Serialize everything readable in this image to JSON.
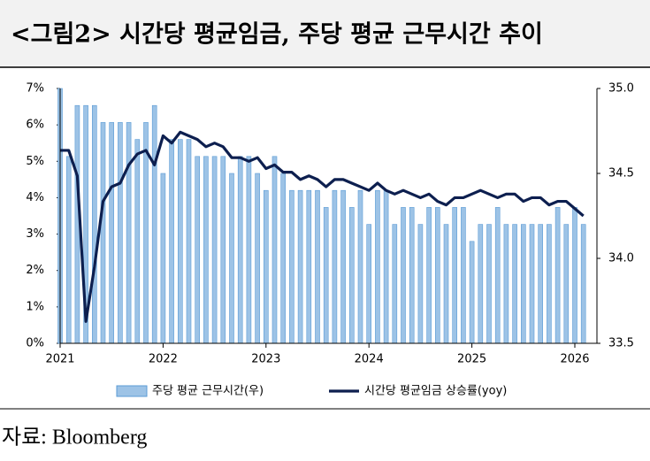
{
  "chart_data": {
    "type": "combo",
    "title": "<그림2> 시간당 평균임금, 주당 평균 근무시간 추이",
    "source": "자료: Bloomberg",
    "categories": [
      "2021",
      null,
      null,
      null,
      null,
      null,
      null,
      null,
      null,
      null,
      null,
      null,
      "2022",
      null,
      null,
      null,
      null,
      null,
      null,
      null,
      null,
      null,
      null,
      null,
      "2023",
      null,
      null,
      null,
      null,
      null,
      null,
      null,
      null,
      null,
      null,
      null,
      "2024",
      null,
      null,
      null,
      null,
      null,
      null,
      null,
      null,
      null,
      null,
      null,
      "2025",
      null,
      null,
      null,
      null,
      null,
      null,
      null,
      null,
      null,
      null,
      null,
      "2026",
      null
    ],
    "ylim": [
      0,
      7
    ],
    "yticks": [
      {
        "value": 0,
        "label": "0%"
      },
      {
        "value": 1,
        "label": "1%"
      },
      {
        "value": 2,
        "label": "2%"
      },
      {
        "value": 3,
        "label": "3%"
      },
      {
        "value": 4,
        "label": "4%"
      },
      {
        "value": 5,
        "label": "5%"
      },
      {
        "value": 6,
        "label": "6%"
      },
      {
        "value": 7,
        "label": "7%"
      }
    ],
    "y2lim": [
      33.5,
      35.0
    ],
    "y2ticks": [
      33.5,
      {
        "value": 34,
        "label": "34.0"
      },
      34.5,
      {
        "value": 35,
        "label": "35.0"
      }
    ],
    "series": [
      {
        "name": "주당 평균 근무시간(우)",
        "type": "bar",
        "axis": "y2",
        "color": "#9dc3e6",
        "values": [
          35.0,
          34.6,
          34.9,
          34.9,
          34.9,
          34.8,
          34.8,
          34.8,
          34.8,
          34.7,
          34.8,
          34.9,
          34.5,
          34.7,
          34.7,
          34.7,
          34.6,
          34.6,
          34.6,
          34.6,
          34.5,
          34.6,
          34.6,
          34.5,
          34.4,
          34.6,
          34.5,
          34.4,
          34.4,
          34.4,
          34.4,
          34.3,
          34.4,
          34.4,
          34.3,
          34.4,
          34.2,
          34.4,
          34.4,
          34.2,
          34.3,
          34.3,
          34.2,
          34.3,
          34.3,
          34.2,
          34.3,
          34.3,
          34.1,
          34.2,
          34.2,
          34.3,
          34.2,
          34.2,
          34.2,
          34.2,
          34.2,
          34.2,
          34.3,
          34.2,
          34.3,
          34.2
        ]
      },
      {
        "name": "시간당 평균임금 상승률(yoy)",
        "type": "line",
        "color": "#0d1f4f",
        "values": [
          5.3,
          5.3,
          4.6,
          0.6,
          2.1,
          3.9,
          4.3,
          4.4,
          4.9,
          5.2,
          5.3,
          4.9,
          5.7,
          5.5,
          5.8,
          5.7,
          5.6,
          5.4,
          5.5,
          5.4,
          5.1,
          5.1,
          5.0,
          5.1,
          4.8,
          4.9,
          4.7,
          4.7,
          4.5,
          4.6,
          4.5,
          4.3,
          4.5,
          4.5,
          4.4,
          4.3,
          4.2,
          4.4,
          4.2,
          4.1,
          4.2,
          4.1,
          4.0,
          4.1,
          3.9,
          3.8,
          4.0,
          4.0,
          4.1,
          4.2,
          4.1,
          4.0,
          4.1,
          4.1,
          3.9,
          4.0,
          4.0,
          3.8,
          3.9,
          3.9,
          3.7,
          3.5
        ]
      }
    ]
  }
}
